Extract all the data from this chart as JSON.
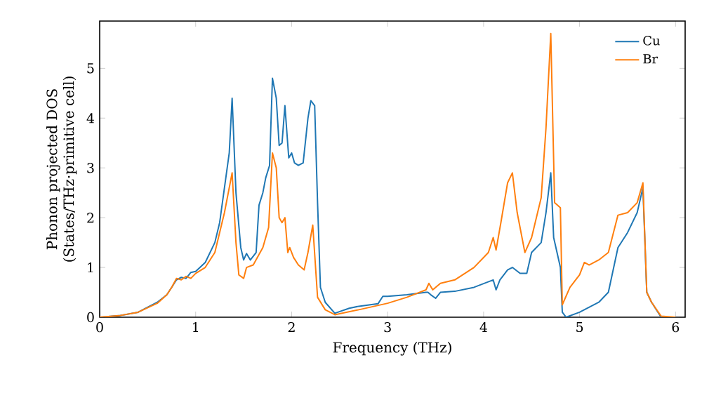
{
  "chart_data": {
    "type": "line",
    "xlabel": "Frequency (THz)",
    "ylabel": "Phonon projected DOS\n(States/THz·primitive cell)",
    "xlim": [
      0,
      6.1
    ],
    "ylim": [
      0,
      5.95
    ],
    "xticks": [
      0,
      1,
      2,
      3,
      4,
      5,
      6
    ],
    "yticks": [
      0,
      1,
      2,
      3,
      4,
      5
    ],
    "legend": "top right",
    "grid": false,
    "line_style": "solid",
    "marker": "none",
    "series": [
      {
        "name": "Cu",
        "color": "#1f77b4",
        "x": [
          0,
          0.2,
          0.4,
          0.6,
          0.7,
          0.75,
          0.8,
          0.85,
          0.9,
          0.95,
          1.0,
          1.1,
          1.2,
          1.25,
          1.3,
          1.35,
          1.38,
          1.42,
          1.47,
          1.5,
          1.53,
          1.57,
          1.63,
          1.66,
          1.7,
          1.73,
          1.77,
          1.8,
          1.84,
          1.87,
          1.9,
          1.93,
          1.97,
          2.0,
          2.03,
          2.07,
          2.12,
          2.17,
          2.2,
          2.24,
          2.27,
          2.3,
          2.35,
          2.45,
          2.6,
          2.7,
          2.9,
          2.95,
          3.0,
          3.2,
          3.4,
          3.42,
          3.45,
          3.5,
          3.55,
          3.7,
          3.9,
          4.1,
          4.13,
          4.17,
          4.25,
          4.3,
          4.38,
          4.45,
          4.5,
          4.6,
          4.65,
          4.7,
          4.73,
          4.8,
          4.82,
          4.86,
          5.0,
          5.2,
          5.3,
          5.4,
          5.5,
          5.6,
          5.66,
          5.7,
          5.75,
          5.85,
          6.0
        ],
        "values": [
          0,
          0.03,
          0.1,
          0.3,
          0.45,
          0.6,
          0.75,
          0.8,
          0.78,
          0.9,
          0.92,
          1.1,
          1.5,
          1.9,
          2.6,
          3.3,
          4.4,
          2.5,
          1.4,
          1.15,
          1.28,
          1.15,
          1.3,
          2.25,
          2.5,
          2.8,
          3.05,
          4.8,
          4.4,
          3.45,
          3.5,
          4.25,
          3.2,
          3.3,
          3.1,
          3.05,
          3.1,
          4.0,
          4.35,
          4.25,
          2.3,
          0.6,
          0.3,
          0.08,
          0.18,
          0.22,
          0.27,
          0.42,
          0.42,
          0.45,
          0.5,
          0.5,
          0.45,
          0.38,
          0.5,
          0.52,
          0.6,
          0.75,
          0.55,
          0.75,
          0.95,
          1.0,
          0.88,
          0.88,
          1.3,
          1.5,
          2.1,
          2.9,
          1.6,
          1.0,
          0.1,
          0.0,
          0.1,
          0.3,
          0.5,
          1.4,
          1.7,
          2.1,
          2.6,
          0.5,
          0.3,
          0,
          0
        ]
      },
      {
        "name": "Br",
        "color": "#ff7f0e",
        "x": [
          0,
          0.2,
          0.4,
          0.6,
          0.7,
          0.75,
          0.8,
          0.85,
          0.9,
          0.95,
          1.0,
          1.1,
          1.2,
          1.3,
          1.38,
          1.42,
          1.45,
          1.5,
          1.53,
          1.6,
          1.7,
          1.76,
          1.8,
          1.84,
          1.87,
          1.9,
          1.93,
          1.96,
          1.98,
          2.02,
          2.07,
          2.13,
          2.17,
          2.22,
          2.27,
          2.35,
          2.45,
          2.7,
          3.0,
          3.2,
          3.4,
          3.43,
          3.47,
          3.55,
          3.7,
          3.9,
          4.05,
          4.1,
          4.13,
          4.18,
          4.25,
          4.3,
          4.35,
          4.43,
          4.5,
          4.6,
          4.65,
          4.7,
          4.74,
          4.8,
          4.82,
          4.9,
          5.0,
          5.05,
          5.1,
          5.2,
          5.3,
          5.4,
          5.5,
          5.6,
          5.66,
          5.7,
          5.75,
          5.85,
          6.0
        ],
        "values": [
          0,
          0.03,
          0.1,
          0.28,
          0.45,
          0.6,
          0.78,
          0.75,
          0.82,
          0.78,
          0.88,
          1.0,
          1.3,
          2.1,
          2.9,
          1.5,
          0.85,
          0.78,
          1.0,
          1.05,
          1.4,
          1.8,
          3.3,
          3.0,
          2.0,
          1.9,
          2.0,
          1.3,
          1.4,
          1.2,
          1.05,
          0.95,
          1.3,
          1.85,
          0.4,
          0.15,
          0.05,
          0.15,
          0.28,
          0.4,
          0.55,
          0.68,
          0.55,
          0.68,
          0.75,
          1.0,
          1.3,
          1.6,
          1.35,
          1.9,
          2.7,
          2.9,
          2.1,
          1.3,
          1.6,
          2.4,
          3.8,
          5.7,
          2.3,
          2.2,
          0.25,
          0.6,
          0.85,
          1.1,
          1.05,
          1.15,
          1.3,
          2.05,
          2.1,
          2.3,
          2.7,
          0.5,
          0.3,
          0.02,
          0
        ]
      }
    ]
  }
}
